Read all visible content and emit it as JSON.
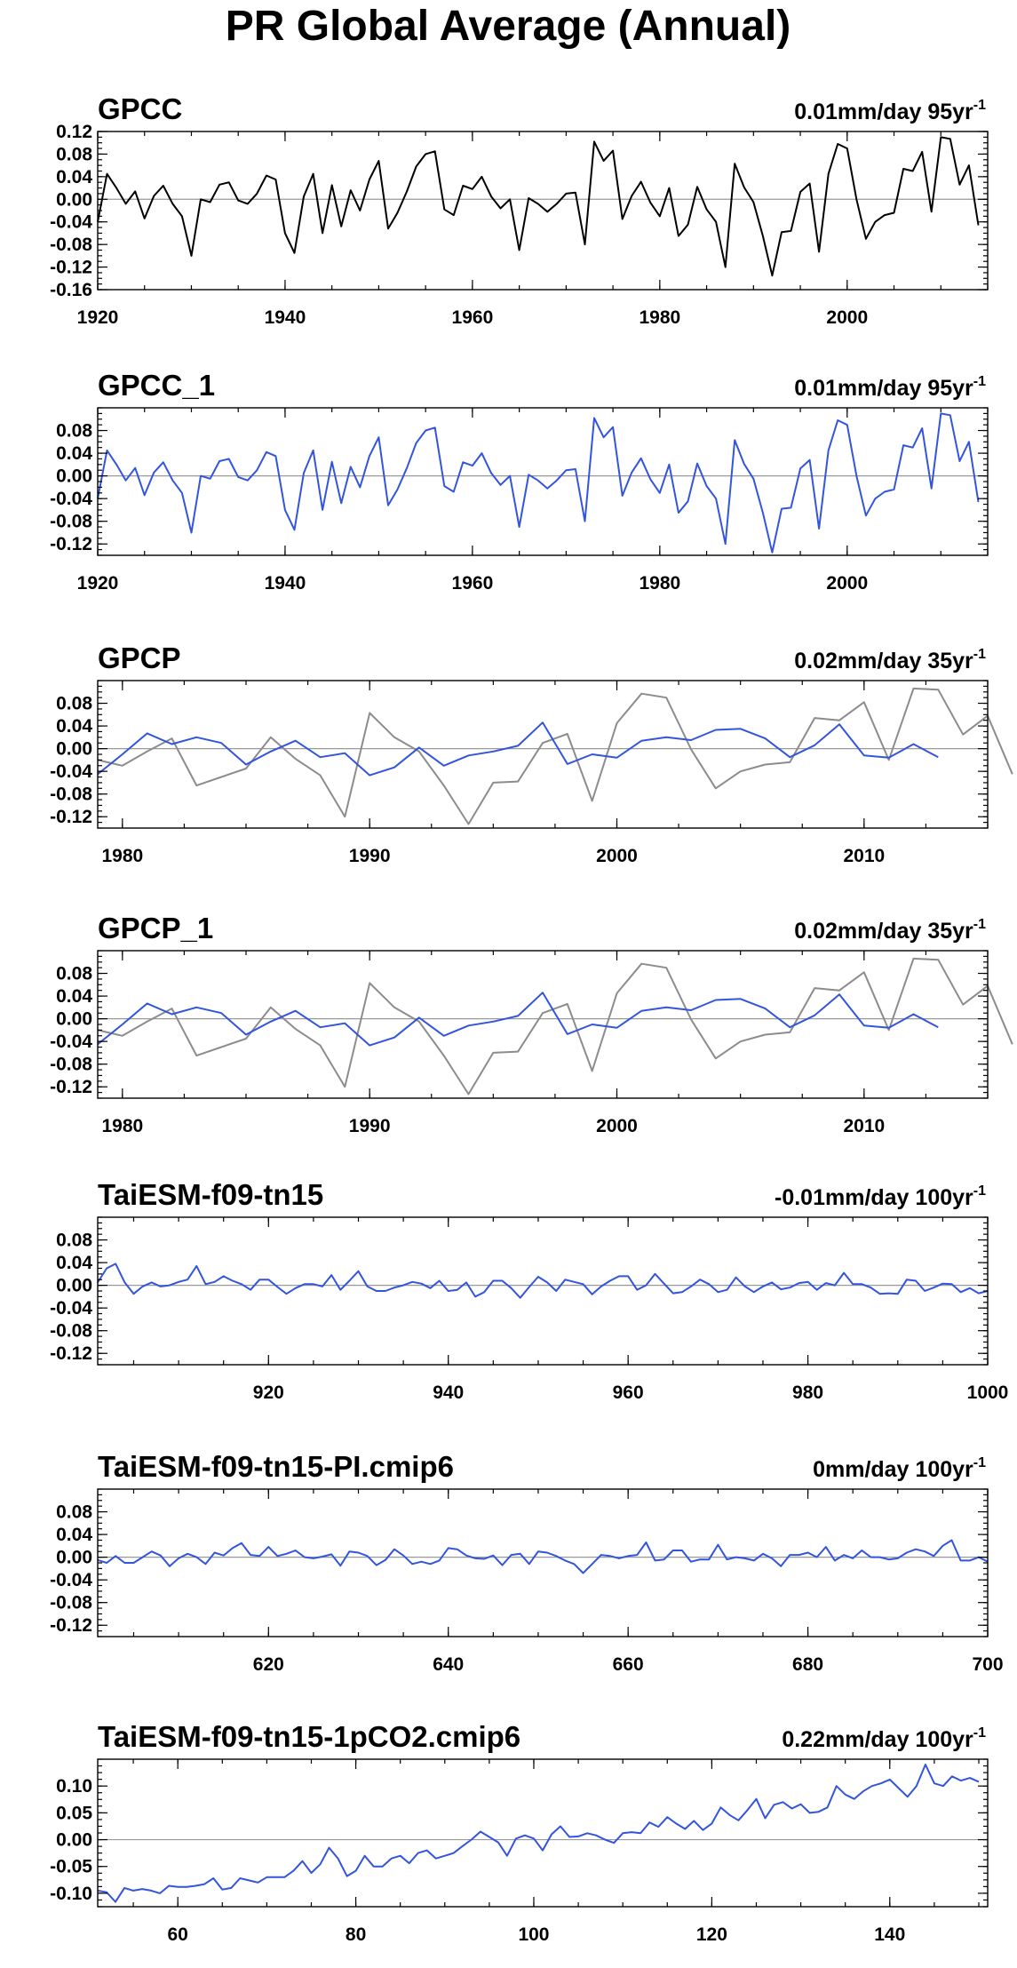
{
  "title": "PR Global Average (Annual)",
  "colors": {
    "obs": "#000000",
    "model": "#3355dd",
    "reference": "#8c8c8c",
    "zero_line": "#9a9a9a"
  },
  "chart_data": [
    {
      "type": "line",
      "title": "GPCC",
      "trend_label": "0.01mm/day 95yr",
      "trend_exp": "-1",
      "xlim": [
        1920,
        2015
      ],
      "ylim": [
        -0.16,
        0.12
      ],
      "xticks": [
        1920,
        1940,
        1960,
        1980,
        2000
      ],
      "yticks": [
        -0.16,
        -0.12,
        -0.08,
        -0.04,
        0.0,
        0.04,
        0.08,
        0.12
      ],
      "ytick_labels": [
        "-0.16",
        "-0.12",
        "-0.08",
        "-0.04",
        "0.00",
        "0.04",
        "0.08",
        "0.12"
      ],
      "series": [
        {
          "color": "#000000",
          "x_start": 1920,
          "values": [
            -0.04,
            0.045,
            0.02,
            -0.008,
            0.014,
            -0.034,
            0.006,
            0.024,
            -0.008,
            -0.03,
            -0.1,
            0.0,
            -0.005,
            0.026,
            0.03,
            -0.002,
            -0.008,
            0.01,
            0.042,
            0.035,
            -0.06,
            -0.095,
            0.005,
            0.045,
            -0.06,
            0.025,
            -0.048,
            0.016,
            -0.02,
            0.035,
            0.068,
            -0.052,
            -0.024,
            0.014,
            0.058,
            0.08,
            0.085,
            -0.018,
            -0.028,
            0.024,
            0.018,
            0.04,
            0.005,
            -0.016,
            0.0,
            -0.09,
            0.002,
            -0.008,
            -0.022,
            -0.008,
            0.01,
            0.012,
            -0.08,
            0.102,
            0.068,
            0.086,
            -0.035,
            0.006,
            0.031,
            -0.006,
            -0.03,
            0.02,
            -0.065,
            -0.045,
            0.022,
            -0.018,
            -0.04,
            -0.12,
            0.063,
            0.021,
            -0.005,
            -0.065,
            -0.135,
            -0.058,
            -0.056,
            0.013,
            0.028,
            -0.093,
            0.045,
            0.098,
            0.09,
            0.0,
            -0.07,
            -0.04,
            -0.028,
            -0.024,
            0.054,
            0.05,
            0.084,
            -0.022,
            0.11,
            0.107,
            0.026,
            0.06,
            -0.046
          ]
        }
      ]
    },
    {
      "type": "line",
      "title": "GPCC_1",
      "trend_label": "0.01mm/day 95yr",
      "trend_exp": "-1",
      "xlim": [
        1920,
        2015
      ],
      "ylim": [
        -0.14,
        0.12
      ],
      "xticks": [
        1920,
        1940,
        1960,
        1980,
        2000
      ],
      "yticks": [
        -0.12,
        -0.08,
        -0.04,
        0.0,
        0.04,
        0.08
      ],
      "ytick_labels": [
        "-0.12",
        "-0.08",
        "-0.04",
        "0.00",
        "0.04",
        "0.08"
      ],
      "series": [
        {
          "color": "#3355dd",
          "x_start": 1920,
          "values": [
            -0.04,
            0.045,
            0.02,
            -0.008,
            0.014,
            -0.034,
            0.006,
            0.024,
            -0.008,
            -0.03,
            -0.1,
            0.0,
            -0.005,
            0.026,
            0.03,
            -0.002,
            -0.008,
            0.01,
            0.042,
            0.035,
            -0.06,
            -0.095,
            0.005,
            0.045,
            -0.06,
            0.025,
            -0.048,
            0.016,
            -0.02,
            0.035,
            0.068,
            -0.052,
            -0.024,
            0.014,
            0.058,
            0.08,
            0.085,
            -0.018,
            -0.028,
            0.024,
            0.018,
            0.04,
            0.005,
            -0.016,
            0.0,
            -0.09,
            0.002,
            -0.008,
            -0.022,
            -0.008,
            0.01,
            0.012,
            -0.08,
            0.102,
            0.068,
            0.086,
            -0.035,
            0.006,
            0.031,
            -0.006,
            -0.03,
            0.02,
            -0.065,
            -0.045,
            0.022,
            -0.018,
            -0.04,
            -0.12,
            0.063,
            0.021,
            -0.005,
            -0.065,
            -0.135,
            -0.058,
            -0.056,
            0.013,
            0.028,
            -0.093,
            0.045,
            0.098,
            0.09,
            0.0,
            -0.07,
            -0.04,
            -0.028,
            -0.024,
            0.054,
            0.05,
            0.084,
            -0.022,
            0.11,
            0.107,
            0.026,
            0.06,
            -0.046
          ]
        }
      ]
    },
    {
      "type": "line",
      "title": "GPCP",
      "trend_label": "0.02mm/day 35yr",
      "trend_exp": "-1",
      "xlim": [
        1979,
        2015
      ],
      "ylim": [
        -0.14,
        0.12
      ],
      "xticks": [
        1980,
        1990,
        2000,
        2010
      ],
      "yticks": [
        -0.12,
        -0.08,
        -0.04,
        0.0,
        0.04,
        0.08
      ],
      "ytick_labels": [
        "-0.12",
        "-0.08",
        "-0.04",
        "0.00",
        "0.04",
        "0.08"
      ],
      "series": [
        {
          "color": "#8c8c8c",
          "x_start": 1979,
          "values": [
            -0.02,
            -0.03,
            -0.005,
            0.018,
            -0.065,
            -0.05,
            -0.035,
            0.02,
            -0.018,
            -0.047,
            -0.12,
            0.063,
            0.02,
            -0.005,
            -0.065,
            -0.133,
            -0.06,
            -0.058,
            0.01,
            0.026,
            -0.092,
            0.045,
            0.097,
            0.09,
            -0.001,
            -0.07,
            -0.04,
            -0.028,
            -0.024,
            0.054,
            0.05,
            0.082,
            -0.02,
            0.106,
            0.104,
            0.025,
            0.058,
            -0.045
          ]
        },
        {
          "color": "#3355dd",
          "x_start": 1979,
          "values": [
            -0.045,
            -0.01,
            0.027,
            0.008,
            0.02,
            0.01,
            -0.028,
            -0.005,
            0.014,
            -0.015,
            -0.008,
            -0.047,
            -0.033,
            0.002,
            -0.03,
            -0.012,
            -0.005,
            0.005,
            0.046,
            -0.027,
            -0.01,
            -0.016,
            0.014,
            0.02,
            0.015,
            0.033,
            0.035,
            0.018,
            -0.015,
            0.006,
            0.043,
            -0.012,
            -0.016,
            0.008,
            -0.015
          ]
        }
      ]
    },
    {
      "type": "line",
      "title": "GPCP_1",
      "trend_label": "0.02mm/day 35yr",
      "trend_exp": "-1",
      "xlim": [
        1979,
        2015
      ],
      "ylim": [
        -0.14,
        0.12
      ],
      "xticks": [
        1980,
        1990,
        2000,
        2010
      ],
      "yticks": [
        -0.12,
        -0.08,
        -0.04,
        0.0,
        0.04,
        0.08
      ],
      "ytick_labels": [
        "-0.12",
        "-0.08",
        "-0.04",
        "0.00",
        "0.04",
        "0.08"
      ],
      "series": [
        {
          "color": "#8c8c8c",
          "x_start": 1979,
          "values": [
            -0.02,
            -0.03,
            -0.005,
            0.018,
            -0.065,
            -0.05,
            -0.035,
            0.02,
            -0.018,
            -0.047,
            -0.12,
            0.063,
            0.02,
            -0.005,
            -0.065,
            -0.133,
            -0.06,
            -0.058,
            0.01,
            0.026,
            -0.092,
            0.045,
            0.097,
            0.09,
            -0.001,
            -0.07,
            -0.04,
            -0.028,
            -0.024,
            0.054,
            0.05,
            0.082,
            -0.02,
            0.106,
            0.104,
            0.025,
            0.058,
            -0.045
          ]
        },
        {
          "color": "#3355dd",
          "x_start": 1979,
          "values": [
            -0.045,
            -0.01,
            0.027,
            0.008,
            0.02,
            0.01,
            -0.028,
            -0.005,
            0.014,
            -0.015,
            -0.008,
            -0.047,
            -0.033,
            0.002,
            -0.03,
            -0.012,
            -0.005,
            0.005,
            0.046,
            -0.027,
            -0.01,
            -0.016,
            0.014,
            0.02,
            0.015,
            0.033,
            0.035,
            0.018,
            -0.015,
            0.006,
            0.043,
            -0.012,
            -0.016,
            0.008,
            -0.015
          ]
        }
      ]
    },
    {
      "type": "line",
      "title": "TaiESM-f09-tn15",
      "trend_label": "-0.01mm/day 100yr",
      "trend_exp": "-1",
      "xlim": [
        901,
        1000
      ],
      "ylim": [
        -0.14,
        0.12
      ],
      "xticks": [
        920,
        940,
        960,
        980,
        1000
      ],
      "yticks": [
        -0.12,
        -0.08,
        -0.04,
        0.0,
        0.04,
        0.08
      ],
      "ytick_labels": [
        "-0.12",
        "-0.08",
        "-0.04",
        "0.00",
        "0.04",
        "0.08"
      ],
      "series": [
        {
          "color": "#3355dd",
          "x_start": 901,
          "values": [
            0.005,
            0.03,
            0.038,
            0.005,
            -0.015,
            -0.002,
            0.005,
            -0.002,
            0.0,
            0.006,
            0.01,
            0.034,
            0.002,
            0.006,
            0.016,
            0.008,
            0.002,
            -0.008,
            0.01,
            0.01,
            -0.003,
            -0.015,
            -0.005,
            0.002,
            0.002,
            -0.002,
            0.018,
            -0.008,
            0.008,
            0.025,
            -0.002,
            -0.01,
            -0.01,
            -0.004,
            0.0,
            0.006,
            0.003,
            -0.005,
            0.008,
            -0.01,
            -0.008,
            0.005,
            -0.02,
            -0.012,
            0.008,
            0.008,
            -0.005,
            -0.022,
            -0.003,
            0.015,
            0.005,
            -0.01,
            0.01,
            0.006,
            0.002,
            -0.016,
            -0.002,
            0.008,
            0.016,
            0.016,
            -0.008,
            0.0,
            0.02,
            0.003,
            -0.014,
            -0.012,
            -0.002,
            0.01,
            0.002,
            -0.012,
            -0.008,
            0.014,
            -0.002,
            -0.012,
            -0.002,
            0.005,
            -0.007,
            -0.004,
            0.004,
            0.006,
            -0.008,
            0.004,
            0.0,
            0.022,
            0.002,
            0.002,
            -0.004,
            -0.015,
            -0.014,
            -0.015,
            0.01,
            0.008,
            -0.01,
            -0.004,
            0.003,
            0.002,
            -0.012,
            -0.005,
            -0.014,
            -0.01
          ]
        }
      ]
    },
    {
      "type": "line",
      "title": "TaiESM-f09-tn15-PI.cmip6",
      "trend_label": "0mm/day 100yr",
      "trend_exp": "-1",
      "xlim": [
        601,
        700
      ],
      "ylim": [
        -0.14,
        0.12
      ],
      "xticks": [
        620,
        640,
        660,
        680,
        700
      ],
      "yticks": [
        -0.12,
        -0.08,
        -0.04,
        0.0,
        0.04,
        0.08
      ],
      "ytick_labels": [
        "-0.12",
        "-0.08",
        "-0.04",
        "0.00",
        "0.04",
        "0.08"
      ],
      "series": [
        {
          "color": "#3355dd",
          "x_start": 601,
          "values": [
            -0.005,
            -0.01,
            0.002,
            -0.01,
            -0.01,
            0.0,
            0.01,
            0.003,
            -0.016,
            -0.002,
            0.006,
            0.0,
            -0.012,
            0.008,
            0.003,
            0.016,
            0.025,
            0.004,
            0.002,
            0.018,
            0.002,
            0.006,
            0.012,
            0.0,
            -0.002,
            0.001,
            0.005,
            -0.015,
            0.01,
            0.008,
            0.002,
            -0.014,
            -0.005,
            0.014,
            0.003,
            -0.012,
            -0.008,
            -0.012,
            -0.006,
            0.016,
            0.014,
            0.003,
            -0.002,
            -0.003,
            0.003,
            -0.014,
            0.004,
            0.006,
            -0.012,
            0.01,
            0.008,
            0.002,
            -0.006,
            -0.012,
            -0.028,
            -0.012,
            0.004,
            0.002,
            -0.002,
            0.002,
            0.004,
            0.026,
            -0.006,
            -0.004,
            0.012,
            0.012,
            -0.008,
            -0.004,
            -0.004,
            0.022,
            -0.004,
            0.0,
            -0.002,
            -0.006,
            0.006,
            -0.002,
            -0.016,
            0.004,
            0.004,
            0.008,
            0.0,
            0.018,
            -0.006,
            0.004,
            -0.002,
            0.012,
            0.0,
            0.0,
            -0.004,
            -0.002,
            0.008,
            0.014,
            0.01,
            0.002,
            0.02,
            0.03,
            -0.006,
            -0.006,
            0.0,
            -0.008
          ]
        }
      ]
    },
    {
      "type": "line",
      "title": "TaiESM-f09-tn15-1pCO2.cmip6",
      "trend_label": "0.22mm/day 100yr",
      "trend_exp": "-1",
      "xlim": [
        51,
        151
      ],
      "ylim": [
        -0.125,
        0.15
      ],
      "xticks": [
        60,
        80,
        100,
        120,
        140
      ],
      "yticks": [
        -0.1,
        -0.05,
        0.0,
        0.05,
        0.1
      ],
      "ytick_labels": [
        "-0.10",
        "-0.05",
        "0.00",
        "0.05",
        "0.10"
      ],
      "series": [
        {
          "color": "#3355dd",
          "x_start": 51,
          "values": [
            -0.095,
            -0.098,
            -0.116,
            -0.09,
            -0.095,
            -0.092,
            -0.095,
            -0.1,
            -0.086,
            -0.088,
            -0.088,
            -0.086,
            -0.083,
            -0.072,
            -0.093,
            -0.09,
            -0.072,
            -0.076,
            -0.08,
            -0.07,
            -0.07,
            -0.07,
            -0.058,
            -0.04,
            -0.062,
            -0.046,
            -0.015,
            -0.035,
            -0.068,
            -0.058,
            -0.03,
            -0.05,
            -0.05,
            -0.035,
            -0.03,
            -0.044,
            -0.025,
            -0.02,
            -0.035,
            -0.03,
            -0.025,
            -0.012,
            0.0,
            0.015,
            0.005,
            -0.005,
            -0.03,
            0.002,
            0.008,
            0.002,
            -0.02,
            0.01,
            0.025,
            0.005,
            0.006,
            0.012,
            0.008,
            0.0,
            -0.006,
            0.012,
            0.014,
            0.012,
            0.032,
            0.024,
            0.042,
            0.03,
            0.02,
            0.035,
            0.018,
            0.03,
            0.06,
            0.046,
            0.036,
            0.055,
            0.076,
            0.04,
            0.065,
            0.07,
            0.058,
            0.066,
            0.05,
            0.052,
            0.06,
            0.1,
            0.084,
            0.076,
            0.09,
            0.1,
            0.105,
            0.112,
            0.096,
            0.08,
            0.1,
            0.14,
            0.105,
            0.1,
            0.118,
            0.11,
            0.115,
            0.108
          ]
        }
      ]
    }
  ]
}
